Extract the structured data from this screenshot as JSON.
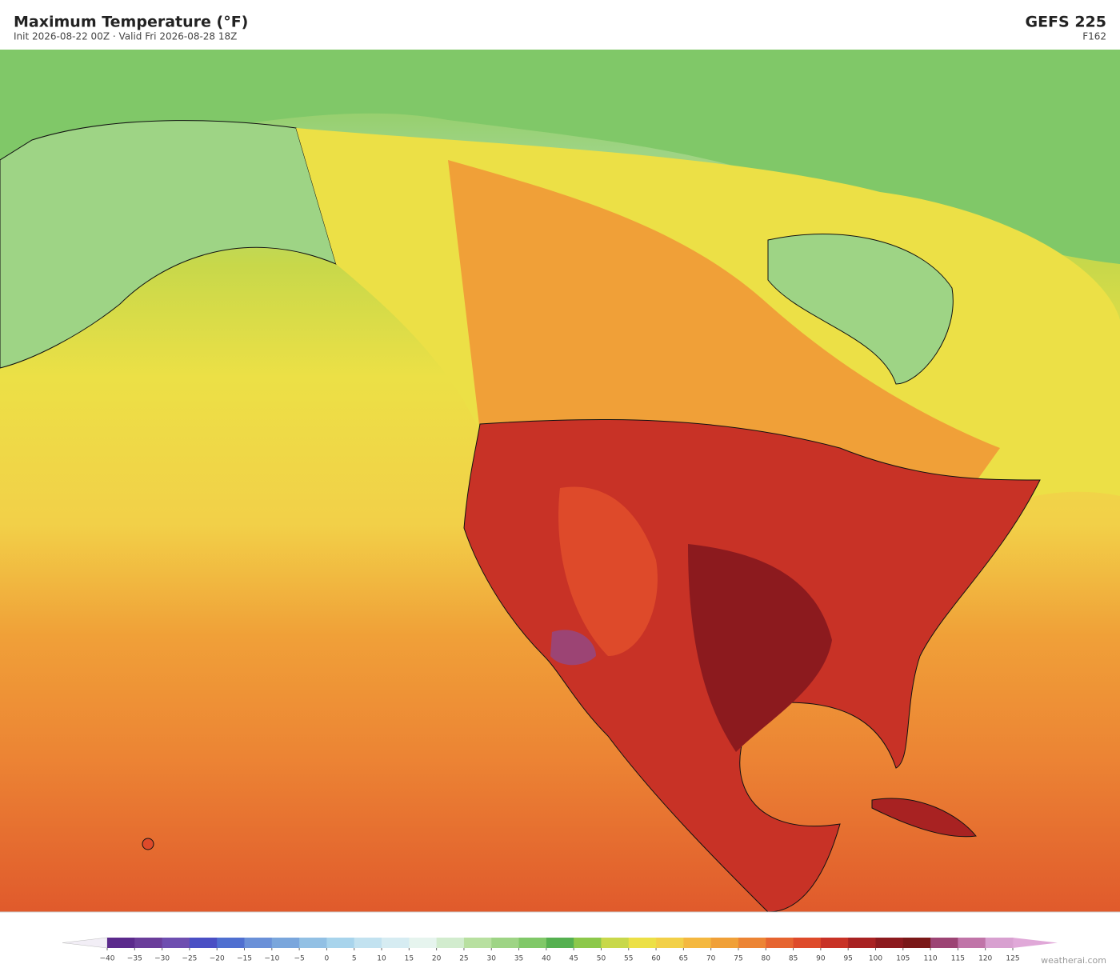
{
  "header": {
    "title": "Maximum Temperature  (°F)",
    "subtitle": "Init 2026-08-22 00Z  ·  Valid Fri 2026-08-28 18Z",
    "model": "GEFS  225",
    "forecast_hour": "F162"
  },
  "colorbar": {
    "ticks": [
      {
        "value": -40,
        "label": "−40"
      },
      {
        "value": -35,
        "label": "−35"
      },
      {
        "value": -30,
        "label": "−30"
      },
      {
        "value": -25,
        "label": "−25"
      },
      {
        "value": -20,
        "label": "−20"
      },
      {
        "value": -15,
        "label": "−15"
      },
      {
        "value": -10,
        "label": "−10"
      },
      {
        "value": -5,
        "label": "−5"
      },
      0,
      5,
      10,
      15,
      20,
      25,
      30,
      35,
      40,
      45,
      50,
      55,
      60,
      65,
      70,
      75,
      80,
      85,
      90,
      95,
      100,
      105,
      110,
      115,
      120,
      125
    ],
    "colors": [
      "#5b2a8c",
      "#6a3d9a",
      "#6e4eb0",
      "#4a4fc4",
      "#4f6fd0",
      "#6a90d8",
      "#7aa6dc",
      "#92c0e4",
      "#a8d4ec",
      "#c2e2f0",
      "#d6ecf2",
      "#e6f4ee",
      "#d2ecce",
      "#b8e0a0",
      "#9ed485",
      "#80c868",
      "#55b050",
      "#8cc84a",
      "#c8d84a",
      "#ece046",
      "#f2d048",
      "#f4b840",
      "#f0a038",
      "#ec8434",
      "#e66430",
      "#de4a2a",
      "#c83226",
      "#a82222",
      "#8c1a1e",
      "#7a1818",
      "#9c4474",
      "#c074a8",
      "#d8a0d0"
    ],
    "under_color": "#f2eef6",
    "over_color": "#e0a8d8"
  },
  "footer": {
    "credit": "weatherai.com"
  }
}
